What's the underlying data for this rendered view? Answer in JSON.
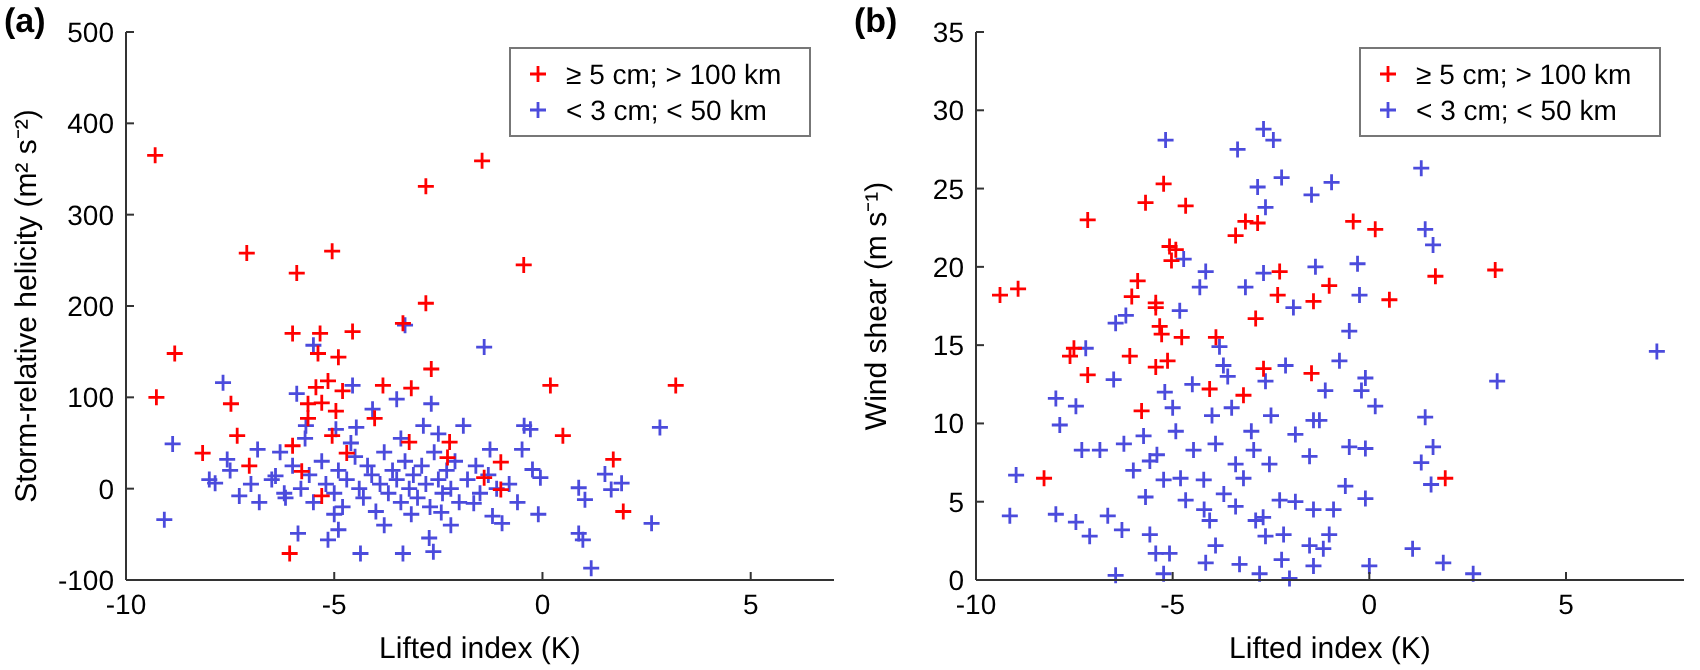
{
  "chart_data": [
    {
      "type": "scatter",
      "title": "(a)",
      "xlabel": "Lifted index (K)",
      "ylabel": "Storm-relative helicity (m² s⁻²)",
      "xlim": [
        -10,
        7
      ],
      "xticks": [
        -10,
        -5,
        0,
        5
      ],
      "ylim": [
        -100,
        500
      ],
      "yticks": [
        -100,
        0,
        100,
        200,
        300,
        400,
        500
      ],
      "marker": "cross",
      "legend": "top right",
      "grid": false,
      "series": [
        {
          "name": "< 3 cm; < 50 km",
          "color": "#4b4bdc",
          "x": [
            -1.4,
            -3.3,
            -5.5,
            -7.67,
            -5.9,
            -4.56,
            -2.67,
            -3.5,
            -4.08,
            2.82,
            -8.88,
            -9.08,
            -7.57,
            -7.86,
            -7.28,
            -6.84,
            -6.41,
            -6.17,
            -5.87,
            -5.15,
            -5.0,
            -4.37,
            -3.35,
            -2.72,
            -2.62,
            -3.15,
            -2.43,
            -1.65,
            -0.97,
            -0.1,
            -0.05,
            -0.44,
            -0.29,
            -0.49,
            -0.24,
            0.87,
            0.87,
            0.97,
            1.17,
            1.5,
            1.9,
            1.02,
            1.65,
            2.62,
            -1.26,
            -1.9,
            -2.86,
            -4.47,
            -4.96,
            -5.68,
            -6.5,
            -6.2,
            -6.0,
            -5.8,
            -5.6,
            -5.5,
            -5.3,
            -5.2,
            -5.0,
            -4.9,
            -4.8,
            -4.7,
            -4.5,
            -4.4,
            -4.3,
            -4.2,
            -4.1,
            -4.0,
            -3.9,
            -3.8,
            -3.7,
            -3.6,
            -3.5,
            -3.4,
            -3.3,
            -3.2,
            -3.1,
            -3.0,
            -2.9,
            -2.8,
            -2.7,
            -2.6,
            -2.5,
            -2.4,
            -2.3,
            -2.2,
            -2.1,
            -2.0,
            -1.8,
            -1.6,
            -1.5,
            -1.3,
            -1.1,
            -0.8,
            -0.6,
            -7.0,
            -7.5,
            -6.8,
            -8.0,
            -6.3,
            -5.7,
            -4.6,
            -3.4,
            -2.5,
            -3.8,
            -4.9,
            -2.2,
            -1.2
          ],
          "values": [
            155,
            179,
            157,
            116,
            104,
            113,
            93,
            98,
            87,
            67,
            49,
            -34,
            32,
            6,
            -8,
            43,
            14,
            -10,
            -49,
            -56,
            -28,
            -71,
            -71,
            -54,
            -69,
            -28,
            -26,
            -16,
            -38,
            -28,
            12,
            69,
            65,
            43,
            21,
            1,
            -49,
            -56,
            -87,
            16,
            6,
            -12,
            -1,
            -38,
            43,
            69,
            69,
            67,
            65,
            69,
            10,
            -5,
            25,
            0,
            15,
            -15,
            30,
            5,
            -5,
            20,
            -20,
            10,
            35,
            0,
            -10,
            25,
            15,
            -25,
            5,
            40,
            -5,
            20,
            10,
            -15,
            30,
            0,
            15,
            -10,
            25,
            5,
            -20,
            40,
            10,
            -5,
            20,
            0,
            30,
            -15,
            10,
            25,
            -5,
            15,
            0,
            5,
            -15,
            5,
            20,
            -15,
            10,
            40,
            55,
            50,
            55,
            60,
            -40,
            -45,
            -40,
            -30
          ]
        },
        {
          "name": "≥ 5 cm; > 100 km",
          "color": "#ff0000",
          "x": [
            -9.3,
            -7.1,
            -5.9,
            -5.05,
            -2.8,
            -1.45,
            -0.45,
            -2.8,
            -6.0,
            -5.34,
            -4.56,
            -3.35,
            -8.83,
            -5.39,
            -4.9,
            -9.27,
            -7.48,
            -5.44,
            -5.15,
            -5.63,
            -5.3,
            -4.96,
            -4.8,
            -3.83,
            -3.15,
            -2.67,
            0.19,
            3.2,
            -7.33,
            -8.16,
            -7.04,
            -6.0,
            -5.63,
            -5.05,
            -4.7,
            -4.03,
            -3.2,
            -2.23,
            -2.28,
            -1.0,
            -1.4,
            -1.0,
            0.49,
            1.7,
            1.94,
            -5.78,
            -5.3,
            -6.07
          ],
          "values": [
            365,
            258,
            236,
            260,
            331,
            359,
            245,
            203,
            170,
            170,
            172,
            181,
            148,
            148,
            144,
            100,
            93,
            111,
            118,
            93,
            94,
            85,
            107,
            113,
            110,
            131,
            113,
            113,
            58,
            39,
            25,
            47,
            77,
            58,
            39,
            77,
            51,
            51,
            34,
            29,
            12,
            -1,
            58,
            32,
            -25,
            19,
            -8,
            -71
          ]
        }
      ]
    },
    {
      "type": "scatter",
      "title": "(b)",
      "xlabel": "Lifted index (K)",
      "ylabel": "Wind shear (m s⁻¹)",
      "xlim": [
        -10,
        8
      ],
      "xticks": [
        -10,
        -5,
        0,
        5
      ],
      "ylim": [
        0,
        35
      ],
      "yticks": [
        0,
        5,
        10,
        15,
        20,
        25,
        30,
        35
      ],
      "marker": "cross",
      "legend": "top right",
      "grid": false,
      "series": [
        {
          "name": "< 3 cm; < 50 km",
          "color": "#4b4bdc",
          "x": [
            -5.18,
            -3.35,
            -2.69,
            -2.44,
            -2.23,
            -2.84,
            -2.64,
            -0.96,
            -1.47,
            1.32,
            1.42,
            1.62,
            -0.3,
            -1.37,
            -4.72,
            -4.16,
            -4.31,
            -3.15,
            -2.69,
            -1.93,
            -0.25,
            -4.82,
            -6.19,
            -7.21,
            -6.45,
            -3.81,
            -3.71,
            -2.64,
            -2.13,
            -0.51,
            -0.76,
            -0.1,
            -0.2,
            -1.12,
            0.15,
            1.42,
            3.25,
            7.31,
            -7.97,
            -7.46,
            -7.87,
            -7.31,
            -6.85,
            -6.24,
            -5.74,
            -5.58,
            -4.92,
            -4.47,
            -3.91,
            -3.4,
            -2.94,
            -2.54,
            -1.88,
            -1.42,
            -1.27,
            -1.52,
            -0.51,
            -0.1,
            1.32,
            1.62,
            1.57,
            -0.61,
            -0.1,
            -8.98,
            -9.14,
            -7.97,
            -7.46,
            -7.11,
            -6.65,
            -6.29,
            -5.69,
            -5.58,
            -5.43,
            -5.08,
            -5.23,
            -4.67,
            -4.21,
            -4.06,
            -3.91,
            -4.16,
            -3.4,
            -3.3,
            -2.89,
            -2.64,
            -2.28,
            -2.18,
            -1.88,
            -1.42,
            -1.52,
            -1.42,
            -1.17,
            -1.02,
            -0.91,
            -2.79,
            -2.03,
            -2.23,
            0.0,
            1.1,
            1.88,
            2.64,
            -6.45,
            -5.23,
            -5.0,
            -4.5,
            -4.0,
            -3.5,
            -3.0,
            -2.5,
            -4.8,
            -3.7,
            -3.2,
            -5.4,
            -4.2,
            -2.7,
            -5.2,
            -3.6,
            -6.5,
            -6.0
          ],
          "values": [
            28.1,
            27.5,
            28.8,
            28.1,
            25.7,
            25.1,
            23.8,
            25.4,
            24.6,
            26.3,
            22.4,
            21.4,
            20.2,
            20.0,
            20.5,
            19.7,
            18.7,
            18.7,
            19.6,
            17.4,
            18.2,
            17.2,
            16.9,
            14.8,
            16.4,
            14.9,
            13.7,
            12.7,
            13.7,
            15.9,
            14.0,
            12.9,
            12.1,
            12.1,
            11.1,
            10.4,
            12.7,
            14.6,
            11.6,
            11.1,
            9.9,
            8.3,
            8.3,
            8.7,
            9.2,
            7.6,
            9.5,
            8.3,
            8.7,
            7.4,
            8.3,
            7.4,
            9.3,
            10.2,
            10.2,
            7.9,
            8.5,
            8.4,
            7.5,
            8.5,
            6.1,
            6.0,
            5.2,
            6.7,
            4.1,
            4.2,
            3.7,
            2.8,
            4.1,
            3.2,
            5.3,
            2.9,
            1.7,
            1.7,
            6.4,
            5.1,
            6.4,
            3.8,
            2.2,
            1.1,
            4.7,
            1.0,
            3.8,
            2.8,
            5.1,
            2.9,
            5.0,
            4.5,
            2.2,
            0.9,
            2.0,
            2.9,
            4.5,
            0.4,
            0.1,
            1.3,
            0.9,
            2.0,
            1.1,
            0.4,
            0.3,
            0.4,
            11,
            12.5,
            10.5,
            11,
            9.5,
            10.5,
            6.5,
            5.5,
            6.5,
            8,
            4.5,
            4,
            12,
            13,
            12.8,
            7
          ]
        },
        {
          "name": "≥ 5 cm; > 100 km",
          "color": "#ff0000",
          "x": [
            -9.39,
            -8.93,
            -7.16,
            -5.69,
            -5.23,
            -4.67,
            -3.4,
            -3.15,
            -2.84,
            -0.41,
            0.15,
            -5.08,
            -4.92,
            -5.03,
            -2.28,
            1.68,
            3.2,
            -5.89,
            -6.04,
            -5.43,
            -1.02,
            -1.42,
            0.51,
            -2.33,
            -2.89,
            -5.43,
            -5.33,
            -5.28,
            -4.77,
            -3.9,
            -7.51,
            -7.61,
            -6.09,
            -7.16,
            -5.43,
            -5.13,
            -2.69,
            -1.47,
            -4.06,
            -3.2,
            -5.79,
            -8.27,
            1.93
          ],
          "values": [
            18.2,
            18.6,
            23.0,
            24.1,
            25.3,
            23.9,
            22.0,
            22.9,
            22.8,
            22.9,
            22.4,
            21.3,
            21.1,
            20.4,
            19.7,
            19.4,
            19.8,
            19.1,
            18.1,
            17.7,
            18.8,
            17.8,
            17.9,
            18.2,
            16.7,
            17.4,
            16.2,
            15.7,
            15.5,
            15.5,
            14.8,
            14.3,
            14.3,
            13.1,
            13.6,
            14.0,
            13.5,
            13.2,
            12.2,
            11.8,
            10.8,
            6.5,
            6.5
          ]
        }
      ]
    }
  ]
}
